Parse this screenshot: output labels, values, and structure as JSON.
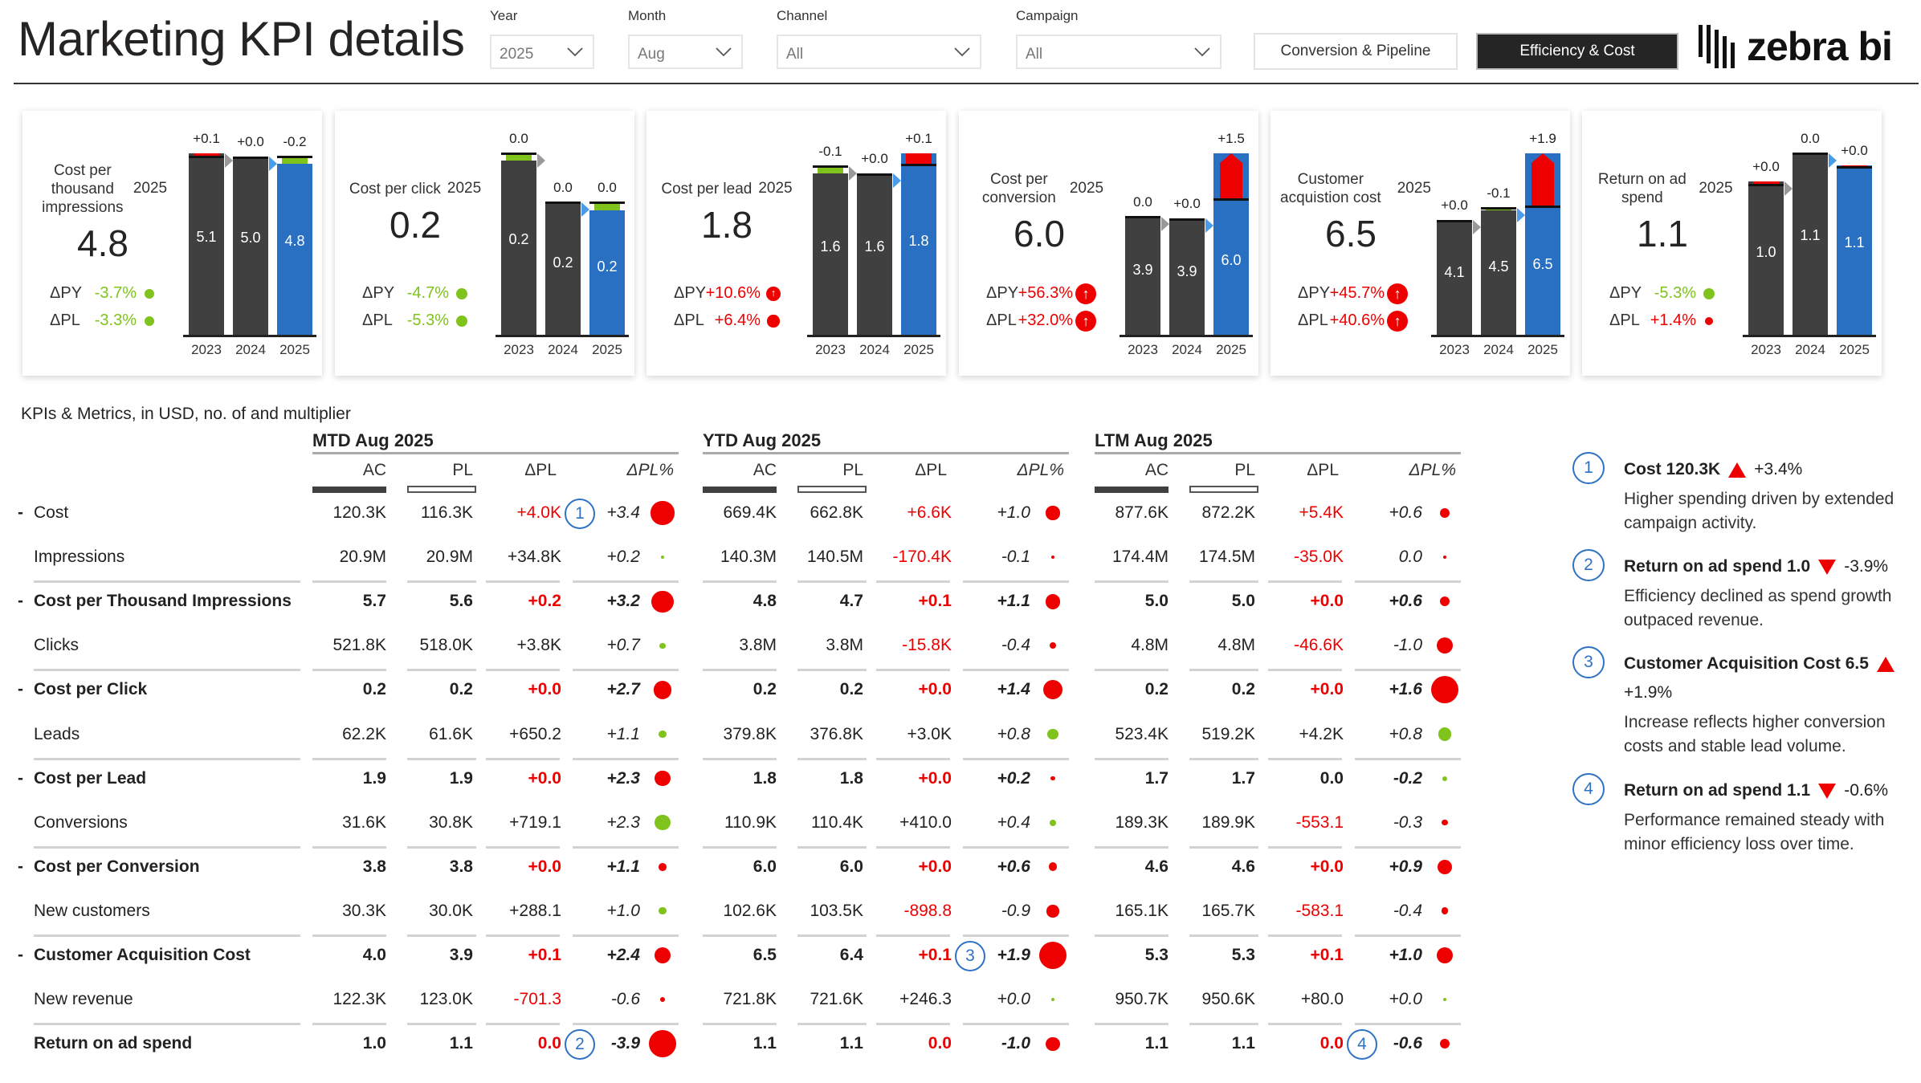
{
  "header": {
    "title": "Marketing KPI details"
  },
  "filters": [
    {
      "label": "Year",
      "value": "2025"
    },
    {
      "label": "Month",
      "value": "Aug"
    },
    {
      "label": "Channel",
      "value": "All"
    },
    {
      "label": "Campaign",
      "value": "All"
    }
  ],
  "nav": {
    "conversion_label": "Conversion & Pipeline",
    "efficiency_label": "Efficiency & Cost",
    "active": "Efficiency & Cost"
  },
  "logo": {
    "text": "zebra bi"
  },
  "colors": {
    "actual": "#404040",
    "current": "#2a70c2",
    "bad": "#ee0000",
    "good": "#7fc31c",
    "marker": "#2f72c4"
  },
  "cards": [
    {
      "title": "Cost per thousand impressions",
      "year": "2025",
      "value": "4.8",
      "dpy": {
        "label": "ΔPY",
        "value": "-3.7%",
        "status": "good"
      },
      "dpl": {
        "label": "ΔPL",
        "value": "-3.3%",
        "status": "good"
      },
      "bars": [
        {
          "year": "2023",
          "label": "5.1",
          "value": 5.1,
          "delta": 0.1,
          "delta_label": "+0.1",
          "status": "bad"
        },
        {
          "year": "2024",
          "label": "5.0",
          "value": 5.0,
          "delta": 0.02,
          "delta_label": "+0.0",
          "status": "bad"
        },
        {
          "year": "2025",
          "label": "4.8",
          "value": 4.8,
          "delta": -0.2,
          "delta_label": "-0.2",
          "status": "good"
        }
      ]
    },
    {
      "title": "Cost per click",
      "year": "2025",
      "value": "0.2",
      "dpy": {
        "label": "ΔPY",
        "value": "-4.7%",
        "status": "good"
      },
      "dpl": {
        "label": "ΔPL",
        "value": "-5.3%",
        "status": "good"
      },
      "bars": [
        {
          "year": "2023",
          "label": "0.2",
          "value": 0.23,
          "delta": -0.01,
          "delta_label": "0.0",
          "status": "good"
        },
        {
          "year": "2024",
          "label": "0.2",
          "value": 0.173,
          "delta": -0.002,
          "delta_label": "0.0",
          "status": "good"
        },
        {
          "year": "2025",
          "label": "0.2",
          "value": 0.165,
          "delta": -0.01,
          "delta_label": "0.0",
          "status": "good"
        }
      ]
    },
    {
      "title": "Cost per lead",
      "year": "2025",
      "value": "1.8",
      "dpy": {
        "label": "ΔPY",
        "value": "+10.6%",
        "status": "bad"
      },
      "dpl": {
        "label": "ΔPL",
        "value": "+6.4%",
        "status": "bad"
      },
      "bars": [
        {
          "year": "2023",
          "label": "1.6",
          "value": 1.6,
          "delta": -0.07,
          "delta_label": "-0.1",
          "status": "good"
        },
        {
          "year": "2024",
          "label": "1.6",
          "value": 1.6,
          "delta": 0.01,
          "delta_label": "+0.0",
          "status": "bad"
        },
        {
          "year": "2025",
          "label": "1.8",
          "value": 1.8,
          "delta": 0.11,
          "delta_label": "+0.1",
          "status": "bad"
        }
      ]
    },
    {
      "title": "Cost per conversion",
      "year": "2025",
      "value": "6.0",
      "dpy": {
        "label": "ΔPY",
        "value": "+56.3%",
        "status": "bad"
      },
      "dpl": {
        "label": "ΔPL",
        "value": "+32.0%",
        "status": "bad"
      },
      "bars": [
        {
          "year": "2023",
          "label": "3.9",
          "value": 3.9,
          "delta": 0.0,
          "delta_label": "0.0",
          "status": "neutral"
        },
        {
          "year": "2024",
          "label": "3.9",
          "value": 3.85,
          "delta": 0.02,
          "delta_label": "+0.0",
          "status": "bad"
        },
        {
          "year": "2025",
          "label": "6.0",
          "value": 6.0,
          "delta": 1.5,
          "delta_label": "+1.5",
          "status": "bad"
        }
      ]
    },
    {
      "title": "Customer acquistion cost",
      "year": "2025",
      "value": "6.5",
      "dpy": {
        "label": "ΔPY",
        "value": "+45.7%",
        "status": "bad"
      },
      "dpl": {
        "label": "ΔPL",
        "value": "+40.6%",
        "status": "bad"
      },
      "bars": [
        {
          "year": "2023",
          "label": "4.1",
          "value": 4.1,
          "delta": 0.02,
          "delta_label": "+0.0",
          "status": "bad"
        },
        {
          "year": "2024",
          "label": "4.5",
          "value": 4.45,
          "delta": -0.1,
          "delta_label": "-0.1",
          "status": "good"
        },
        {
          "year": "2025",
          "label": "6.5",
          "value": 6.5,
          "delta": 1.9,
          "delta_label": "+1.9",
          "status": "bad"
        }
      ]
    },
    {
      "title": "Return on ad spend",
      "year": "2025",
      "value": "1.1",
      "dpy": {
        "label": "ΔPY",
        "value": "-5.3%",
        "status": "good"
      },
      "dpl": {
        "label": "ΔPL",
        "value": "+1.4%",
        "status": "bad"
      },
      "bars": [
        {
          "year": "2023",
          "label": "1.0",
          "value": 0.95,
          "delta": 0.02,
          "delta_label": "+0.0",
          "status": "bad"
        },
        {
          "year": "2024",
          "label": "1.1",
          "value": 1.12,
          "delta": -0.004,
          "delta_label": "0.0",
          "status": "good"
        },
        {
          "year": "2025",
          "label": "1.1",
          "value": 1.05,
          "delta": 0.01,
          "delta_label": "+0.0",
          "status": "bad"
        }
      ]
    }
  ],
  "table": {
    "caption": "KPIs & Metrics, in USD, no. of and multiplier",
    "groups": [
      "MTD Aug 2025",
      "YTD Aug 2025",
      "LTM Aug 2025"
    ],
    "columns": [
      "AC",
      "PL",
      "ΔPL",
      "ΔPL%"
    ],
    "rows": [
      {
        "label": "Cost",
        "bold": false,
        "collapse": "-",
        "cells": [
          [
            "120.3K",
            "116.3K",
            "+4.0K",
            "+3.4",
            1,
            "r",
            1
          ],
          [
            "669.4K",
            "662.8K",
            "+6.6K",
            "+1.0",
            1,
            "r",
            0
          ],
          [
            "877.6K",
            "872.2K",
            "+5.4K",
            "+0.6",
            1,
            "r",
            0
          ]
        ]
      },
      {
        "label": "Impressions",
        "bold": false,
        "collapse": "",
        "cells": [
          [
            "20.9M",
            "20.9M",
            "+34.8K",
            "+0.2",
            0,
            "g",
            0
          ],
          [
            "140.3M",
            "140.5M",
            "-170.4K",
            "-0.1",
            1,
            "r",
            0
          ],
          [
            "174.4M",
            "174.5M",
            "-35.0K",
            "0.0",
            1,
            "r",
            0
          ]
        ]
      },
      {
        "label": "Cost per Thousand Impressions",
        "bold": true,
        "collapse": "-",
        "cells": [
          [
            "5.7",
            "5.6",
            "+0.2",
            "+3.2",
            1,
            "r",
            0
          ],
          [
            "4.8",
            "4.7",
            "+0.1",
            "+1.1",
            1,
            "r",
            0
          ],
          [
            "5.0",
            "5.0",
            "+0.0",
            "+0.6",
            1,
            "r",
            0
          ]
        ]
      },
      {
        "label": "Clicks",
        "bold": false,
        "collapse": "",
        "cells": [
          [
            "521.8K",
            "518.0K",
            "+3.8K",
            "+0.7",
            0,
            "g",
            0
          ],
          [
            "3.8M",
            "3.8M",
            "-15.8K",
            "-0.4",
            1,
            "r",
            0
          ],
          [
            "4.8M",
            "4.8M",
            "-46.6K",
            "-1.0",
            1,
            "r",
            0
          ]
        ]
      },
      {
        "label": "Cost per Click",
        "bold": true,
        "collapse": "-",
        "cells": [
          [
            "0.2",
            "0.2",
            "+0.0",
            "+2.7",
            1,
            "r",
            0
          ],
          [
            "0.2",
            "0.2",
            "+0.0",
            "+1.4",
            1,
            "r",
            0
          ],
          [
            "0.2",
            "0.2",
            "+0.0",
            "+1.6",
            1,
            "r",
            0
          ]
        ]
      },
      {
        "label": "Leads",
        "bold": false,
        "collapse": "",
        "cells": [
          [
            "62.2K",
            "61.6K",
            "+650.2",
            "+1.1",
            0,
            "g",
            0
          ],
          [
            "379.8K",
            "376.8K",
            "+3.0K",
            "+0.8",
            0,
            "g",
            0
          ],
          [
            "523.4K",
            "519.2K",
            "+4.2K",
            "+0.8",
            0,
            "g",
            0
          ]
        ]
      },
      {
        "label": "Cost per Lead",
        "bold": true,
        "collapse": "-",
        "cells": [
          [
            "1.9",
            "1.9",
            "+0.0",
            "+2.3",
            1,
            "r",
            0
          ],
          [
            "1.8",
            "1.8",
            "+0.0",
            "+0.2",
            1,
            "r",
            0
          ],
          [
            "1.7",
            "1.7",
            "0.0",
            "-0.2",
            0,
            "g",
            0
          ]
        ]
      },
      {
        "label": "Conversions",
        "bold": false,
        "collapse": "",
        "cells": [
          [
            "31.6K",
            "30.8K",
            "+719.1",
            "+2.3",
            0,
            "g",
            0
          ],
          [
            "110.9K",
            "110.4K",
            "+410.0",
            "+0.4",
            0,
            "g",
            0
          ],
          [
            "189.3K",
            "189.9K",
            "-553.1",
            "-0.3",
            1,
            "r",
            0
          ]
        ]
      },
      {
        "label": "Cost per Conversion",
        "bold": true,
        "collapse": "-",
        "cells": [
          [
            "3.8",
            "3.8",
            "+0.0",
            "+1.1",
            1,
            "r",
            0
          ],
          [
            "6.0",
            "6.0",
            "+0.0",
            "+0.6",
            1,
            "r",
            0
          ],
          [
            "4.6",
            "4.6",
            "+0.0",
            "+0.9",
            1,
            "r",
            0
          ]
        ]
      },
      {
        "label": "New customers",
        "bold": false,
        "collapse": "",
        "cells": [
          [
            "30.3K",
            "30.0K",
            "+288.1",
            "+1.0",
            0,
            "g",
            0
          ],
          [
            "102.6K",
            "103.5K",
            "-898.8",
            "-0.9",
            1,
            "r",
            0
          ],
          [
            "165.1K",
            "165.7K",
            "-583.1",
            "-0.4",
            1,
            "r",
            0
          ]
        ]
      },
      {
        "label": "Customer Acquisition Cost",
        "bold": true,
        "collapse": "-",
        "cells": [
          [
            "4.0",
            "3.9",
            "+0.1",
            "+2.4",
            1,
            "r",
            0
          ],
          [
            "6.5",
            "6.4",
            "+0.1",
            "+1.9",
            1,
            "r",
            3
          ],
          [
            "5.3",
            "5.3",
            "+0.1",
            "+1.0",
            1,
            "r",
            0
          ]
        ]
      },
      {
        "label": "New revenue",
        "bold": false,
        "collapse": "",
        "cells": [
          [
            "122.3K",
            "123.0K",
            "-701.3",
            "-0.6",
            1,
            "r",
            0
          ],
          [
            "721.8K",
            "721.6K",
            "+246.3",
            "+0.0",
            0,
            "g",
            0
          ],
          [
            "950.7K",
            "950.6K",
            "+80.0",
            "+0.0",
            0,
            "g",
            0
          ]
        ]
      },
      {
        "label": "Return on ad spend",
        "bold": true,
        "collapse": "",
        "cells": [
          [
            "1.0",
            "1.1",
            "0.0",
            "-3.9",
            1,
            "r",
            2
          ],
          [
            "1.1",
            "1.1",
            "0.0",
            "-1.0",
            1,
            "r",
            0
          ],
          [
            "1.1",
            "1.1",
            "0.0",
            "-0.6",
            1,
            "r",
            4
          ]
        ]
      }
    ]
  },
  "notes": [
    {
      "num": "1",
      "title": "Cost 120.3K",
      "direction": "up",
      "change": "+3.4%",
      "body": "Higher spending driven by extended campaign activity."
    },
    {
      "num": "2",
      "title": "Return on ad spend 1.0",
      "direction": "down",
      "change": "-3.9%",
      "body": "Efficiency declined as spend growth outpaced revenue."
    },
    {
      "num": "3",
      "title": "Customer Acquisition Cost 6.5",
      "direction": "up",
      "change": "+1.9%",
      "body": "Increase reflects higher conversion costs and stable lead volume."
    },
    {
      "num": "4",
      "title": "Return on ad spend 1.1",
      "direction": "down",
      "change": "-0.6%",
      "body": "Performance remained steady with minor efficiency loss over time."
    }
  ]
}
